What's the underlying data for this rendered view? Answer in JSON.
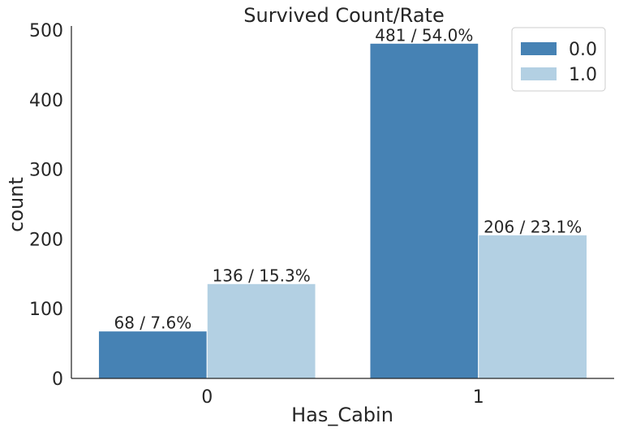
{
  "chart_data": {
    "type": "bar",
    "title": "Survived Count/Rate",
    "xlabel": "Has_Cabin",
    "ylabel": "count",
    "categories": [
      "0",
      "1"
    ],
    "ylim": [
      0,
      500
    ],
    "yticks": [
      "0",
      "100",
      "200",
      "300",
      "400",
      "500"
    ],
    "series": [
      {
        "name": "0.0",
        "color": "#4682b4",
        "values": [
          68,
          481
        ],
        "labels": [
          "68 / 7.6%",
          "481 / 54.0%"
        ]
      },
      {
        "name": "1.0",
        "color": "#b3d0e3",
        "values": [
          136,
          206
        ],
        "labels": [
          "136 / 15.3%",
          "206 / 23.1%"
        ]
      }
    ],
    "grid": false,
    "legend_position": "top-right"
  }
}
